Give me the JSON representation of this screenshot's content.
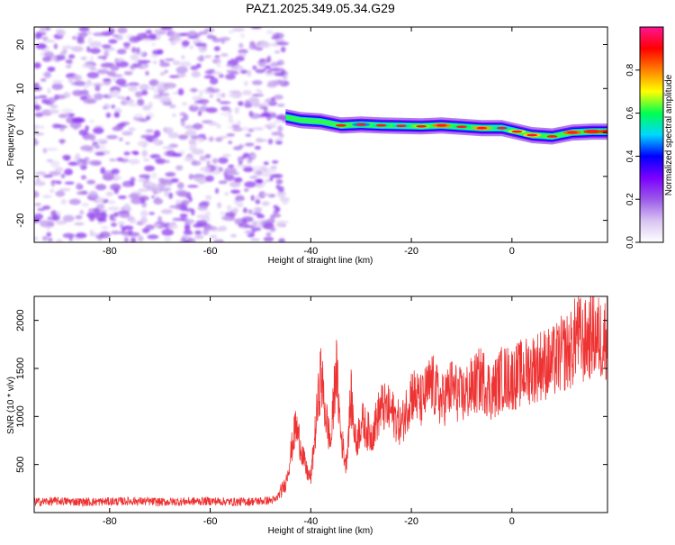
{
  "chart_data": [
    {
      "type": "heatmap",
      "title": "PAZ1.2025.349.05.34.G29",
      "xlabel": "Height of straight line (km)",
      "ylabel": "Frequency (Hz)",
      "xlim": [
        -95,
        19
      ],
      "ylim": [
        -25,
        24
      ],
      "xticks": [
        -80,
        -60,
        -40,
        -20,
        0
      ],
      "yticks": [
        20,
        10,
        0,
        -10,
        -20
      ],
      "xtick_labels": [
        "-80",
        "-60",
        "-40",
        "-20",
        "0"
      ],
      "ytick_labels": [
        "20",
        "10",
        "0",
        "-10",
        "-20"
      ],
      "colorbar": {
        "label": "Normalized spectral amplitude",
        "range": [
          0,
          1
        ],
        "ticks": [
          0.0,
          0.2,
          0.4,
          0.6,
          0.8
        ],
        "tick_labels": [
          "0.0",
          "0.2",
          "0.4",
          "0.6",
          "0.8"
        ],
        "colormap": [
          "#ffffff",
          "#d8c4f2",
          "#9b59e8",
          "#7a00ff",
          "#0000ff",
          "#00d8ff",
          "#00ff50",
          "#ffff00",
          "#ff8000",
          "#ff0000",
          "#ff1493"
        ]
      },
      "noise_region": {
        "x_range": [
          -95,
          -46
        ],
        "freq_range": [
          -25,
          24
        ],
        "amplitude_range": [
          0.05,
          0.25
        ]
      },
      "signal_ridge": [
        {
          "x": -45,
          "freq": 3.5,
          "amp": 0.28
        },
        {
          "x": -42,
          "freq": 2.8,
          "amp": 0.35
        },
        {
          "x": -38,
          "freq": 2.5,
          "amp": 0.5
        },
        {
          "x": -34,
          "freq": 1.6,
          "amp": 0.7
        },
        {
          "x": -30,
          "freq": 1.8,
          "amp": 0.55
        },
        {
          "x": -26,
          "freq": 1.6,
          "amp": 0.62
        },
        {
          "x": -22,
          "freq": 1.5,
          "amp": 0.6
        },
        {
          "x": -18,
          "freq": 1.4,
          "amp": 0.72
        },
        {
          "x": -14,
          "freq": 1.6,
          "amp": 0.88
        },
        {
          "x": -10,
          "freq": 1.3,
          "amp": 0.65
        },
        {
          "x": -6,
          "freq": 1.0,
          "amp": 0.85
        },
        {
          "x": -2,
          "freq": 1.0,
          "amp": 0.6
        },
        {
          "x": 1,
          "freq": 0.2,
          "amp": 0.75
        },
        {
          "x": 4,
          "freq": -0.6,
          "amp": 0.82
        },
        {
          "x": 8,
          "freq": -0.9,
          "amp": 0.7
        },
        {
          "x": 12,
          "freq": 0.0,
          "amp": 0.9
        },
        {
          "x": 16,
          "freq": 0.2,
          "amp": 0.95
        },
        {
          "x": 19,
          "freq": 0.2,
          "amp": 0.95
        }
      ],
      "ridge_color": "#ff1a1a"
    },
    {
      "type": "line",
      "xlabel": "Height of straight line (km)",
      "ylabel": "SNR (10 * v/v)",
      "xlim": [
        -95,
        19
      ],
      "ylim": [
        0,
        2250
      ],
      "xticks": [
        -80,
        -60,
        -40,
        -20,
        0
      ],
      "yticks": [
        500,
        1000,
        1500,
        2000
      ],
      "xtick_labels": [
        "-80",
        "-60",
        "-40",
        "-20",
        "0"
      ],
      "ytick_labels": [
        "500",
        "1000",
        "1500",
        "2000"
      ],
      "line_color": "#ee3333",
      "series": [
        {
          "name": "SNR",
          "x": [
            -95,
            -90,
            -85,
            -80,
            -75,
            -70,
            -65,
            -60,
            -55,
            -50,
            -47,
            -45,
            -44,
            -43,
            -42,
            -41,
            -40,
            -39,
            -38,
            -37,
            -36,
            -35,
            -34,
            -33,
            -32,
            -31,
            -30,
            -28,
            -26,
            -24,
            -22,
            -20,
            -18,
            -16,
            -14,
            -12,
            -10,
            -8,
            -6,
            -4,
            -2,
            0,
            2,
            4,
            6,
            8,
            10,
            12,
            13,
            14,
            16,
            18,
            19
          ],
          "values": [
            110,
            120,
            110,
            115,
            120,
            110,
            115,
            120,
            110,
            120,
            130,
            300,
            600,
            900,
            700,
            450,
            350,
            900,
            1450,
            1000,
            700,
            1550,
            800,
            500,
            1200,
            700,
            950,
            800,
            1100,
            1050,
            900,
            1250,
            1150,
            1350,
            1150,
            1300,
            1200,
            1300,
            1400,
            1250,
            1400,
            1400,
            1450,
            1500,
            1550,
            1550,
            1650,
            1700,
            1900,
            1750,
            1850,
            1800,
            1850
          ]
        }
      ]
    }
  ]
}
